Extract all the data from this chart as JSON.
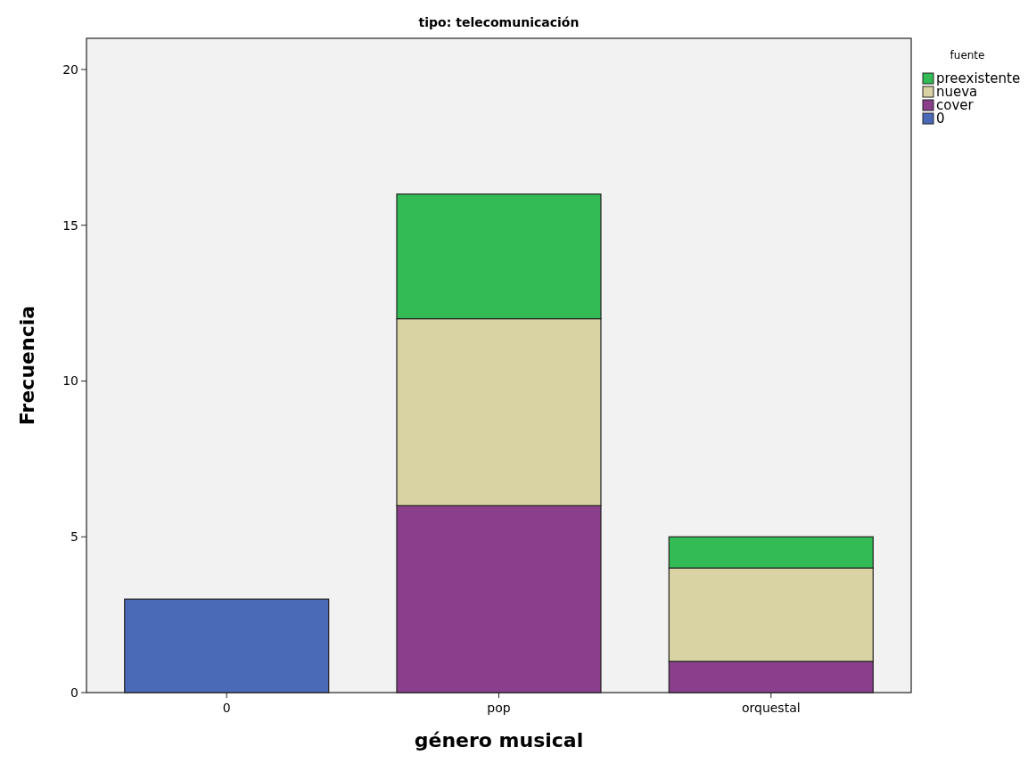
{
  "chart_data": {
    "type": "bar",
    "title": "tipo: telecomunicación",
    "xlabel": "género musical",
    "ylabel": "Frecuencia",
    "legend_title": "fuente",
    "categories": [
      "0",
      "pop",
      "orquestal"
    ],
    "stacked": true,
    "ylim": [
      0,
      21
    ],
    "yticks": [
      0,
      5,
      10,
      15,
      20
    ],
    "grid": false,
    "legend": "top right",
    "series": [
      {
        "name": "0",
        "color": "#4a6ab8",
        "values": [
          3,
          null,
          null
        ]
      },
      {
        "name": "cover",
        "color": "#8a3f8c",
        "values": [
          null,
          6,
          1
        ]
      },
      {
        "name": "nueva",
        "color": "#d9d3a3",
        "values": [
          null,
          6,
          3
        ]
      },
      {
        "name": "preexistente",
        "color": "#33bb55",
        "values": [
          null,
          4,
          1
        ]
      }
    ]
  }
}
